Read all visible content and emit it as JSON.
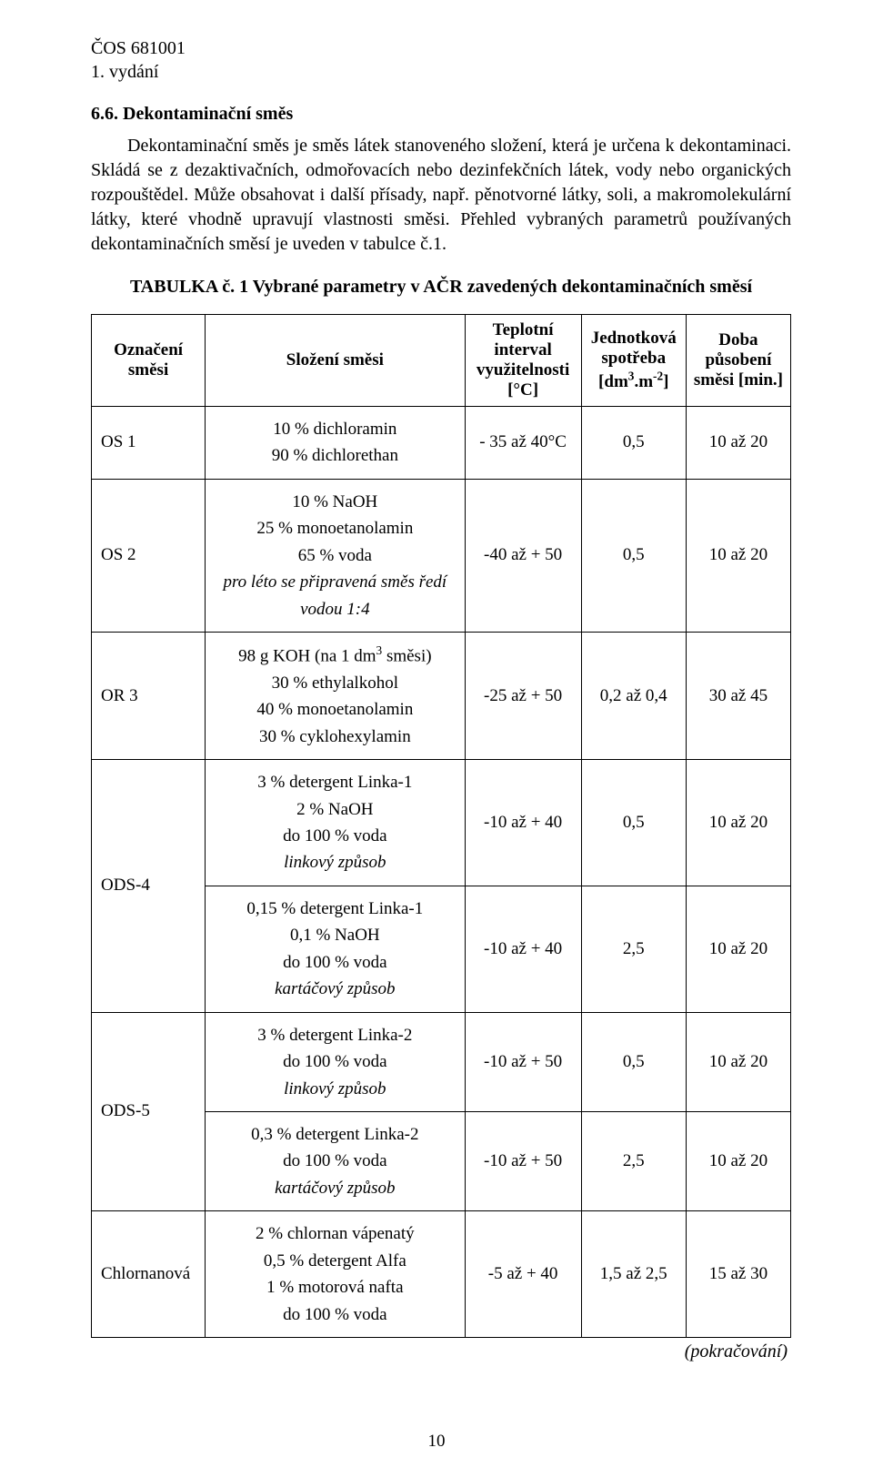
{
  "header": {
    "code": "ČOS 681001",
    "edition": "1. vydání"
  },
  "section": {
    "number_title": "6.6. Dekontaminační směs",
    "paragraph": "Dekontaminační směs je směs látek stanoveného složení, která je určena k dekontaminaci. Skládá se z dezaktivačních, odmořovacích nebo dezinfekčních látek, vody nebo organických rozpouštědel. Může obsahovat i další přísady, např. pěnotvorné látky, soli, a makromolekulární látky, které vhodně upravují vlastnosti směsi. Přehled vybraných parametrů používaných dekontaminačních směsí je uveden v tabulce č.1."
  },
  "table": {
    "caption": "TABULKA č. 1 Vybrané parametry v AČR zavedených dekontaminačních směsí",
    "headers": {
      "c1": "Označení směsi",
      "c2": "Složení směsi",
      "c3_html": "Teplotní interval využitelnosti [°C]",
      "c4_label": "Jednotková spotřeba",
      "c4_unit_html": "[dm<sup>3</sup>.m<sup>-2</sup>]",
      "c5": "Doba působení směsi [min.]"
    },
    "rows": [
      {
        "designation": "OS 1",
        "composition": [
          "10 % dichloramin",
          "90 % dichlorethan"
        ],
        "temp": "- 35 až 40°C",
        "consumption": "0,5",
        "time": "10 až 20"
      },
      {
        "designation": "OS 2",
        "composition": [
          "10 %  NaOH",
          "25 %  monoetanolamin",
          "65 %  voda",
          {
            "text": "pro léto se připravená směs ředí",
            "italic": true
          },
          {
            "text": "vodou 1:4",
            "italic": true
          }
        ],
        "temp": "-40 až + 50",
        "consumption": "0,5",
        "time": "10 až 20"
      },
      {
        "designation": "OR 3",
        "composition": [
          {
            "html": "98 g   KOH (na 1 dm<sup>3</sup> směsi)"
          },
          "30 %  ethylalkohol",
          "40 %  monoetanolamin",
          "30 %  cyklohexylamin"
        ],
        "temp": "-25 až + 50",
        "consumption": "0,2 až 0,4",
        "time": "30 až 45"
      },
      {
        "designation": "ODS-4",
        "sub": [
          {
            "composition": [
              "3 % detergent Linka-1",
              "2 % NaOH",
              "do 100 % voda",
              {
                "text": "linkový způsob",
                "italic": true
              }
            ],
            "temp": "-10 až + 40",
            "consumption": "0,5",
            "time": "10 až 20"
          },
          {
            "composition": [
              "0,15 % detergent Linka-1",
              "0,1 % NaOH",
              "do 100 % voda",
              {
                "text": "kartáčový způsob",
                "italic": true
              }
            ],
            "temp": "-10 až + 40",
            "consumption": "2,5",
            "time": "10 až 20"
          }
        ]
      },
      {
        "designation": "ODS-5",
        "sub": [
          {
            "composition": [
              "3 % detergent Linka-2",
              "do 100 % voda",
              {
                "text": "linkový způsob",
                "italic": true
              }
            ],
            "temp": "-10 až + 50",
            "consumption": "0,5",
            "time": "10 až 20"
          },
          {
            "composition": [
              "0,3 % detergent Linka-2",
              "do 100 % voda",
              {
                "text": "kartáčový způsob",
                "italic": true
              }
            ],
            "temp": "-10 až + 50",
            "consumption": "2,5",
            "time": "10 až 20"
          }
        ]
      },
      {
        "designation": "Chlornanová",
        "composition": [
          "2 % chlornan vápenatý",
          "0,5 % detergent Alfa",
          "1 %   motorová nafta",
          "do 100 % voda"
        ],
        "temp": "-5 až + 40",
        "consumption": "1,5 až 2,5",
        "time": "15 až 30"
      }
    ],
    "continues": "(pokračování)"
  },
  "page_number": "10"
}
